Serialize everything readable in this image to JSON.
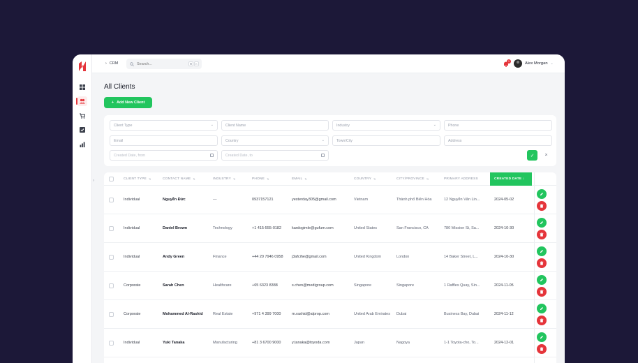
{
  "app": {
    "breadcrumb": "CRM",
    "search_placeholder": "Search...",
    "search_shortcut": [
      "⌘",
      "K"
    ],
    "notification_count": "1",
    "user_name": "Alex Morgan"
  },
  "page": {
    "title": "All Clients",
    "add_button": "Add New Client"
  },
  "filters": {
    "client_type": "Client Type",
    "client_name": "Client Name",
    "industry": "Industry",
    "phone": "Phone",
    "email": "Email",
    "country": "Country",
    "town_city": "Town/City",
    "address": "Address",
    "created_from": "Created Date, from",
    "created_to": "Created Date, to"
  },
  "table": {
    "headers": [
      "CLIENT TYPE",
      "CONTACT NAME",
      "INDUSTRY",
      "PHONE",
      "EMAIL",
      "COUNTRY",
      "CITY/PROVINCE",
      "PRIMARY ADDRESS",
      "CREATED DATE ↓"
    ],
    "rows": [
      {
        "type": "Individual",
        "name": "Nguyễn Đức",
        "industry": "—",
        "phone": "0937157121",
        "email": "yesterday305@gmail.com",
        "country": "Vietnam",
        "city": "Thành phố Biên Hòa",
        "address": "12 Nguyễn Văn Lin...",
        "date": "2024-05-02"
      },
      {
        "type": "Individual",
        "name": "Daniel Brown",
        "industry": "Technology",
        "phone": "+1 415-555-0182",
        "email": "kardogimle@gufum.com",
        "country": "United States",
        "city": "San Francisco, CA",
        "address": "780 Mission St, Sa...",
        "date": "2024-10-30"
      },
      {
        "type": "Individual",
        "name": "Andy Green",
        "industry": "Finance",
        "phone": "+44 20 7946 0958",
        "email": "j3afcihe@gmail.com",
        "country": "United Kingdom",
        "city": "London",
        "address": "14 Baker Street, L...",
        "date": "2024-10-30"
      },
      {
        "type": "Corporate",
        "name": "Sarah Chen",
        "industry": "Healthcare",
        "phone": "+65 6323 8388",
        "email": "s.chen@medigroup.com",
        "country": "Singapore",
        "city": "Singapore",
        "address": "1 Raffles Quay, Sin...",
        "date": "2024-11-05"
      },
      {
        "type": "Corporate",
        "name": "Mohammed Al-Rashid",
        "industry": "Real Estate",
        "phone": "+971 4 399 7000",
        "email": "m.rashid@alprop.com",
        "country": "United Arab Emirates",
        "city": "Dubai",
        "address": "Business Bay, Dubai",
        "date": "2024-11-12"
      },
      {
        "type": "Individual",
        "name": "Yuki Tanaka",
        "industry": "Manufacturing",
        "phone": "+81 3 6700 9000",
        "email": "y.tanaka@toyoda.com",
        "country": "Japan",
        "city": "Nagoya",
        "address": "1-1 Toyota-cho, To...",
        "date": "2024-12-01"
      }
    ]
  },
  "colors": {
    "accent_green": "#22c55e",
    "danger_red": "#e5353b",
    "backdrop": "#1c1838"
  }
}
